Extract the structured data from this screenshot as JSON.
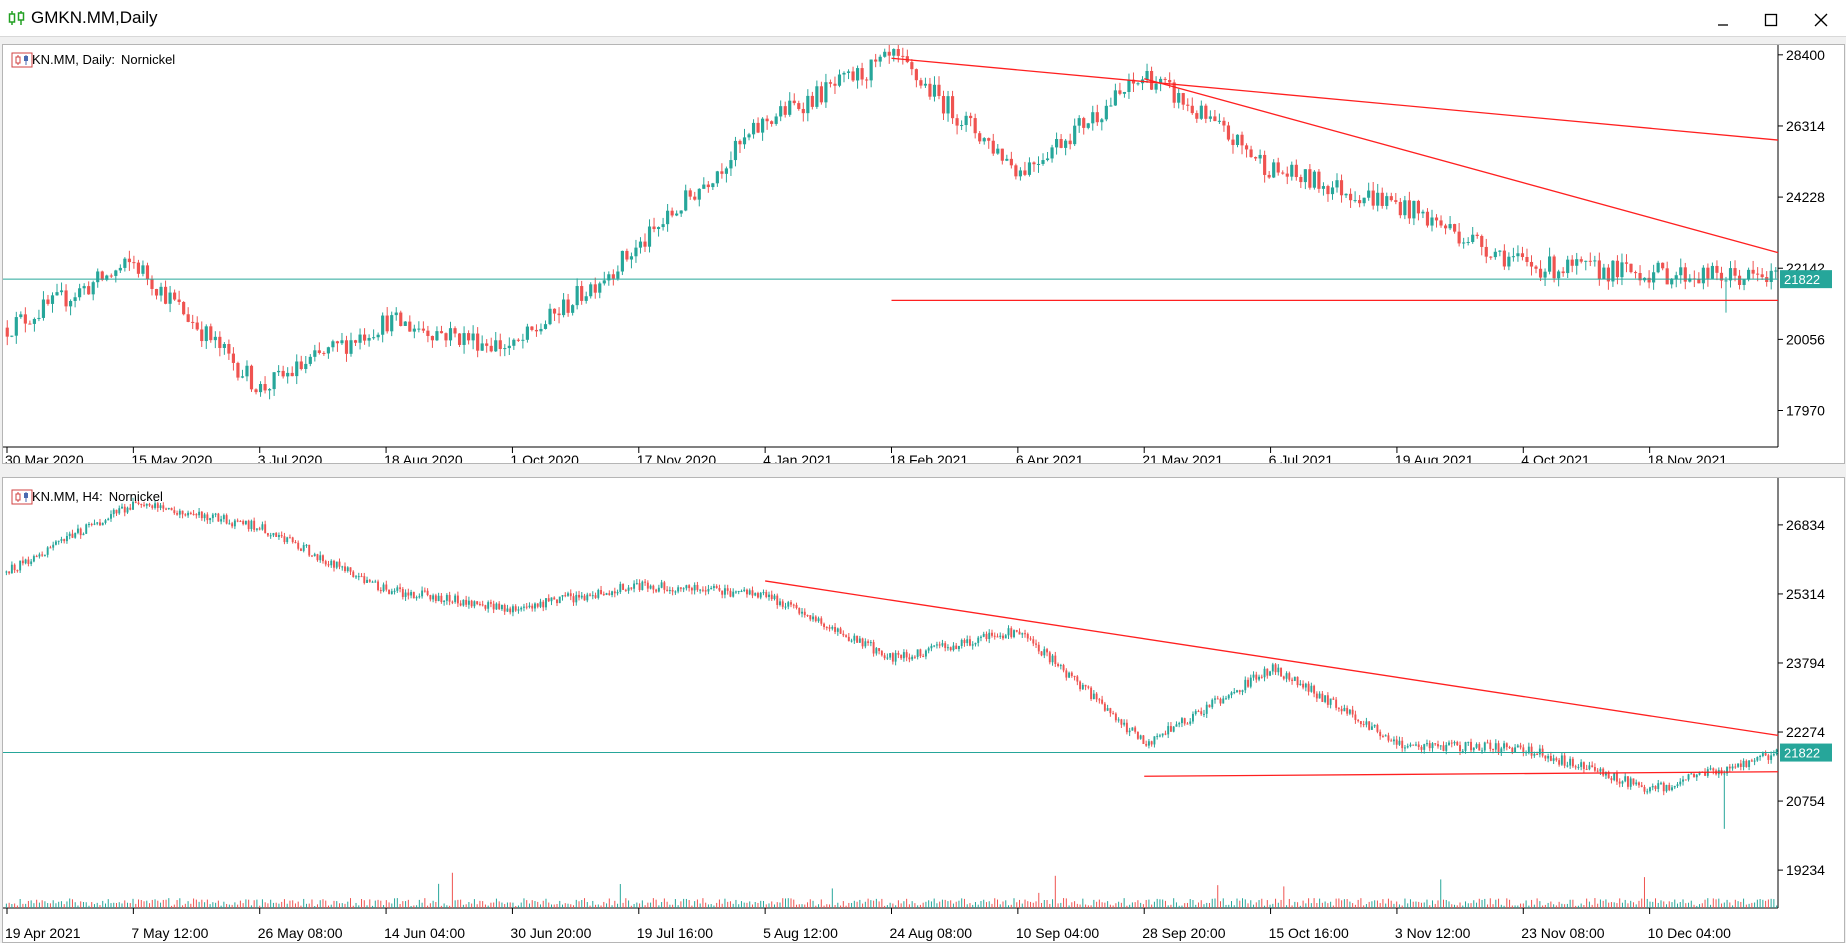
{
  "window": {
    "title": "GMKN.MM,Daily"
  },
  "colors": {
    "up": "#26a69a",
    "down": "#ef5350",
    "trend": "#ff2020",
    "current": "#26a69a",
    "grid": "#000000"
  },
  "charts": [
    {
      "label_symbol": "GMKN.MM, Daily:",
      "label_name": "Nornickel",
      "y_ticks": [
        "28400",
        "26314",
        "24228",
        "22142",
        "20056",
        "17970"
      ],
      "x_ticks": [
        "30 Mar 2020",
        "15 May 2020",
        "3 Jul 2020",
        "18 Aug 2020",
        "1 Oct 2020",
        "17 Nov 2020",
        "4 Jan 2021",
        "18 Feb 2021",
        "6 Apr 2021",
        "21 May 2021",
        "6 Jul 2021",
        "19 Aug 2021",
        "4 Oct 2021",
        "18 Nov 2021"
      ],
      "current_price": "21822"
    },
    {
      "label_symbol": "GMKN.MM, H4:",
      "label_name": "Nornickel",
      "y_ticks": [
        "26834",
        "25314",
        "23794",
        "22274",
        "20754",
        "19234"
      ],
      "x_ticks": [
        "19 Apr 2021",
        "7 May 12:00",
        "26 May 08:00",
        "14 Jun 04:00",
        "30 Jun 20:00",
        "19 Jul 16:00",
        "5 Aug 12:00",
        "24 Aug 08:00",
        "10 Sep 04:00",
        "28 Sep 20:00",
        "15 Oct 16:00",
        "3 Nov 12:00",
        "23 Nov 08:00",
        "10 Dec 04:00"
      ],
      "current_price": "21822"
    }
  ],
  "chart_data": [
    {
      "type": "candlestick",
      "symbol": "GMKN.MM",
      "timeframe": "Daily",
      "ylim": [
        16900,
        28600
      ],
      "current": 21822,
      "key_points": [
        {
          "date": "30 Mar 2020",
          "close": 20400
        },
        {
          "date": "15 May 2020",
          "close": 22300
        },
        {
          "date": "3 Jul 2020",
          "close": 18600
        },
        {
          "date": "18 Aug 2020",
          "close": 20600
        },
        {
          "date": "1 Oct 2020",
          "close": 19800
        },
        {
          "date": "17 Nov 2020",
          "close": 22800
        },
        {
          "date": "4 Jan 2021",
          "close": 26500
        },
        {
          "date": "18 Feb 2021",
          "close": 28300
        },
        {
          "date": "6 Apr 2021",
          "close": 25000
        },
        {
          "date": "21 May 2021",
          "close": 27800
        },
        {
          "date": "6 Jul 2021",
          "close": 25000
        },
        {
          "date": "19 Aug 2021",
          "close": 24000
        },
        {
          "date": "4 Oct 2021",
          "close": 22200
        },
        {
          "date": "18 Nov 2021",
          "close": 22000
        }
      ],
      "trendlines": [
        {
          "from": [
            "18 Feb 2021",
            28300
          ],
          "to": [
            "end",
            25900
          ]
        },
        {
          "from": [
            "21 May 2021",
            27700
          ],
          "to": [
            "end",
            22600
          ]
        },
        {
          "from": [
            "18 Feb 2021",
            21200
          ],
          "to": [
            "end",
            21200
          ]
        }
      ]
    },
    {
      "type": "candlestick",
      "symbol": "GMKN.MM",
      "timeframe": "H4",
      "ylim": [
        18400,
        27800
      ],
      "current": 21822,
      "key_points": [
        {
          "date": "19 Apr 2021",
          "close": 25800
        },
        {
          "date": "7 May 12:00",
          "close": 27300
        },
        {
          "date": "26 May 08:00",
          "close": 26800
        },
        {
          "date": "14 Jun 04:00",
          "close": 25400
        },
        {
          "date": "30 Jun 20:00",
          "close": 25000
        },
        {
          "date": "19 Jul 16:00",
          "close": 25500
        },
        {
          "date": "5 Aug 12:00",
          "close": 25300
        },
        {
          "date": "24 Aug 08:00",
          "close": 23900
        },
        {
          "date": "10 Sep 04:00",
          "close": 24500
        },
        {
          "date": "28 Sep 20:00",
          "close": 22000
        },
        {
          "date": "15 Oct 16:00",
          "close": 23700
        },
        {
          "date": "3 Nov 12:00",
          "close": 22000
        },
        {
          "date": "23 Nov 08:00",
          "close": 21900
        },
        {
          "date": "10 Dec 04:00",
          "close": 21000
        }
      ],
      "trendlines": [
        {
          "from": [
            "5 Aug 12:00",
            25600
          ],
          "to": [
            "end",
            22200
          ]
        },
        {
          "from": [
            "28 Sep 20:00",
            21300
          ],
          "to": [
            "end",
            21400
          ]
        }
      ]
    }
  ]
}
